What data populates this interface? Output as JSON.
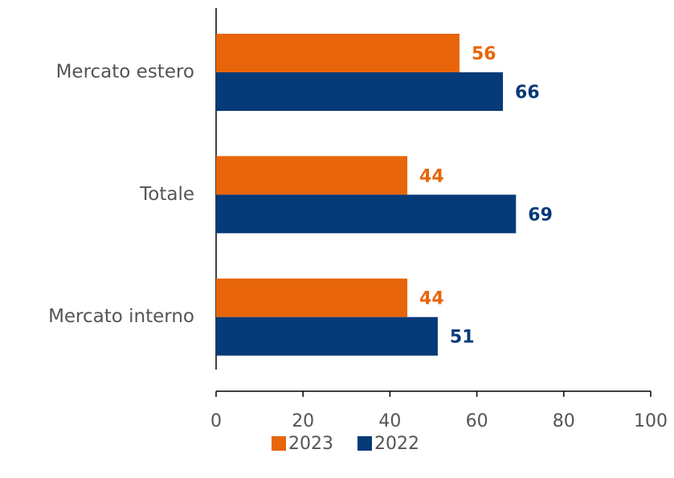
{
  "chart_data": {
    "type": "bar",
    "orientation": "horizontal",
    "categories": [
      "Mercato estero",
      "Totale",
      "Mercato interno"
    ],
    "series": [
      {
        "name": "2023",
        "color": "#E8650A",
        "values": [
          56,
          44,
          44
        ]
      },
      {
        "name": "2022",
        "color": "#063A78",
        "values": [
          66,
          69,
          51
        ]
      }
    ],
    "xlim": [
      0,
      100
    ],
    "xticks": [
      0,
      20,
      40,
      60,
      80,
      100
    ],
    "legend": "bottom"
  }
}
